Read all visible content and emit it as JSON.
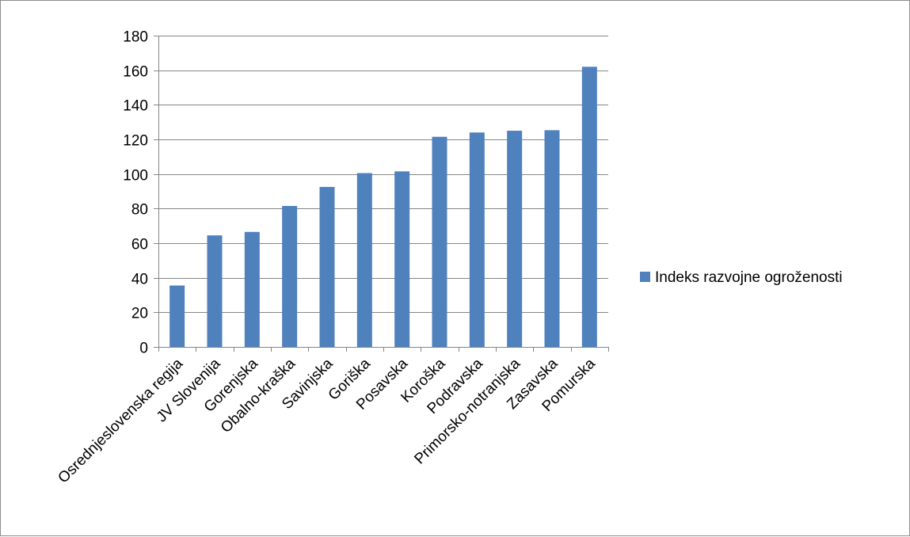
{
  "chart_data": {
    "type": "bar",
    "categories": [
      "Osrednjeslovenska regija",
      "JV Slovenija",
      "Gorenjska",
      "Obalno-kraška",
      "Savinjska",
      "Goriška",
      "Posavska",
      "Koroška",
      "Podravska",
      "Primorsko-notranjska",
      "Zasavska",
      "Pomurska"
    ],
    "series": [
      {
        "name": "Indeks razvojne ogroženosti",
        "color": "#4f81bd",
        "values": [
          35.5,
          64.5,
          66.5,
          81.5,
          92.5,
          100.5,
          101.5,
          121.5,
          124,
          125,
          125.3,
          162
        ]
      }
    ],
    "ylim": [
      0,
      180
    ],
    "yticks": [
      0,
      20,
      40,
      60,
      80,
      100,
      120,
      140,
      160,
      180
    ],
    "grid": true,
    "legend": "right"
  }
}
